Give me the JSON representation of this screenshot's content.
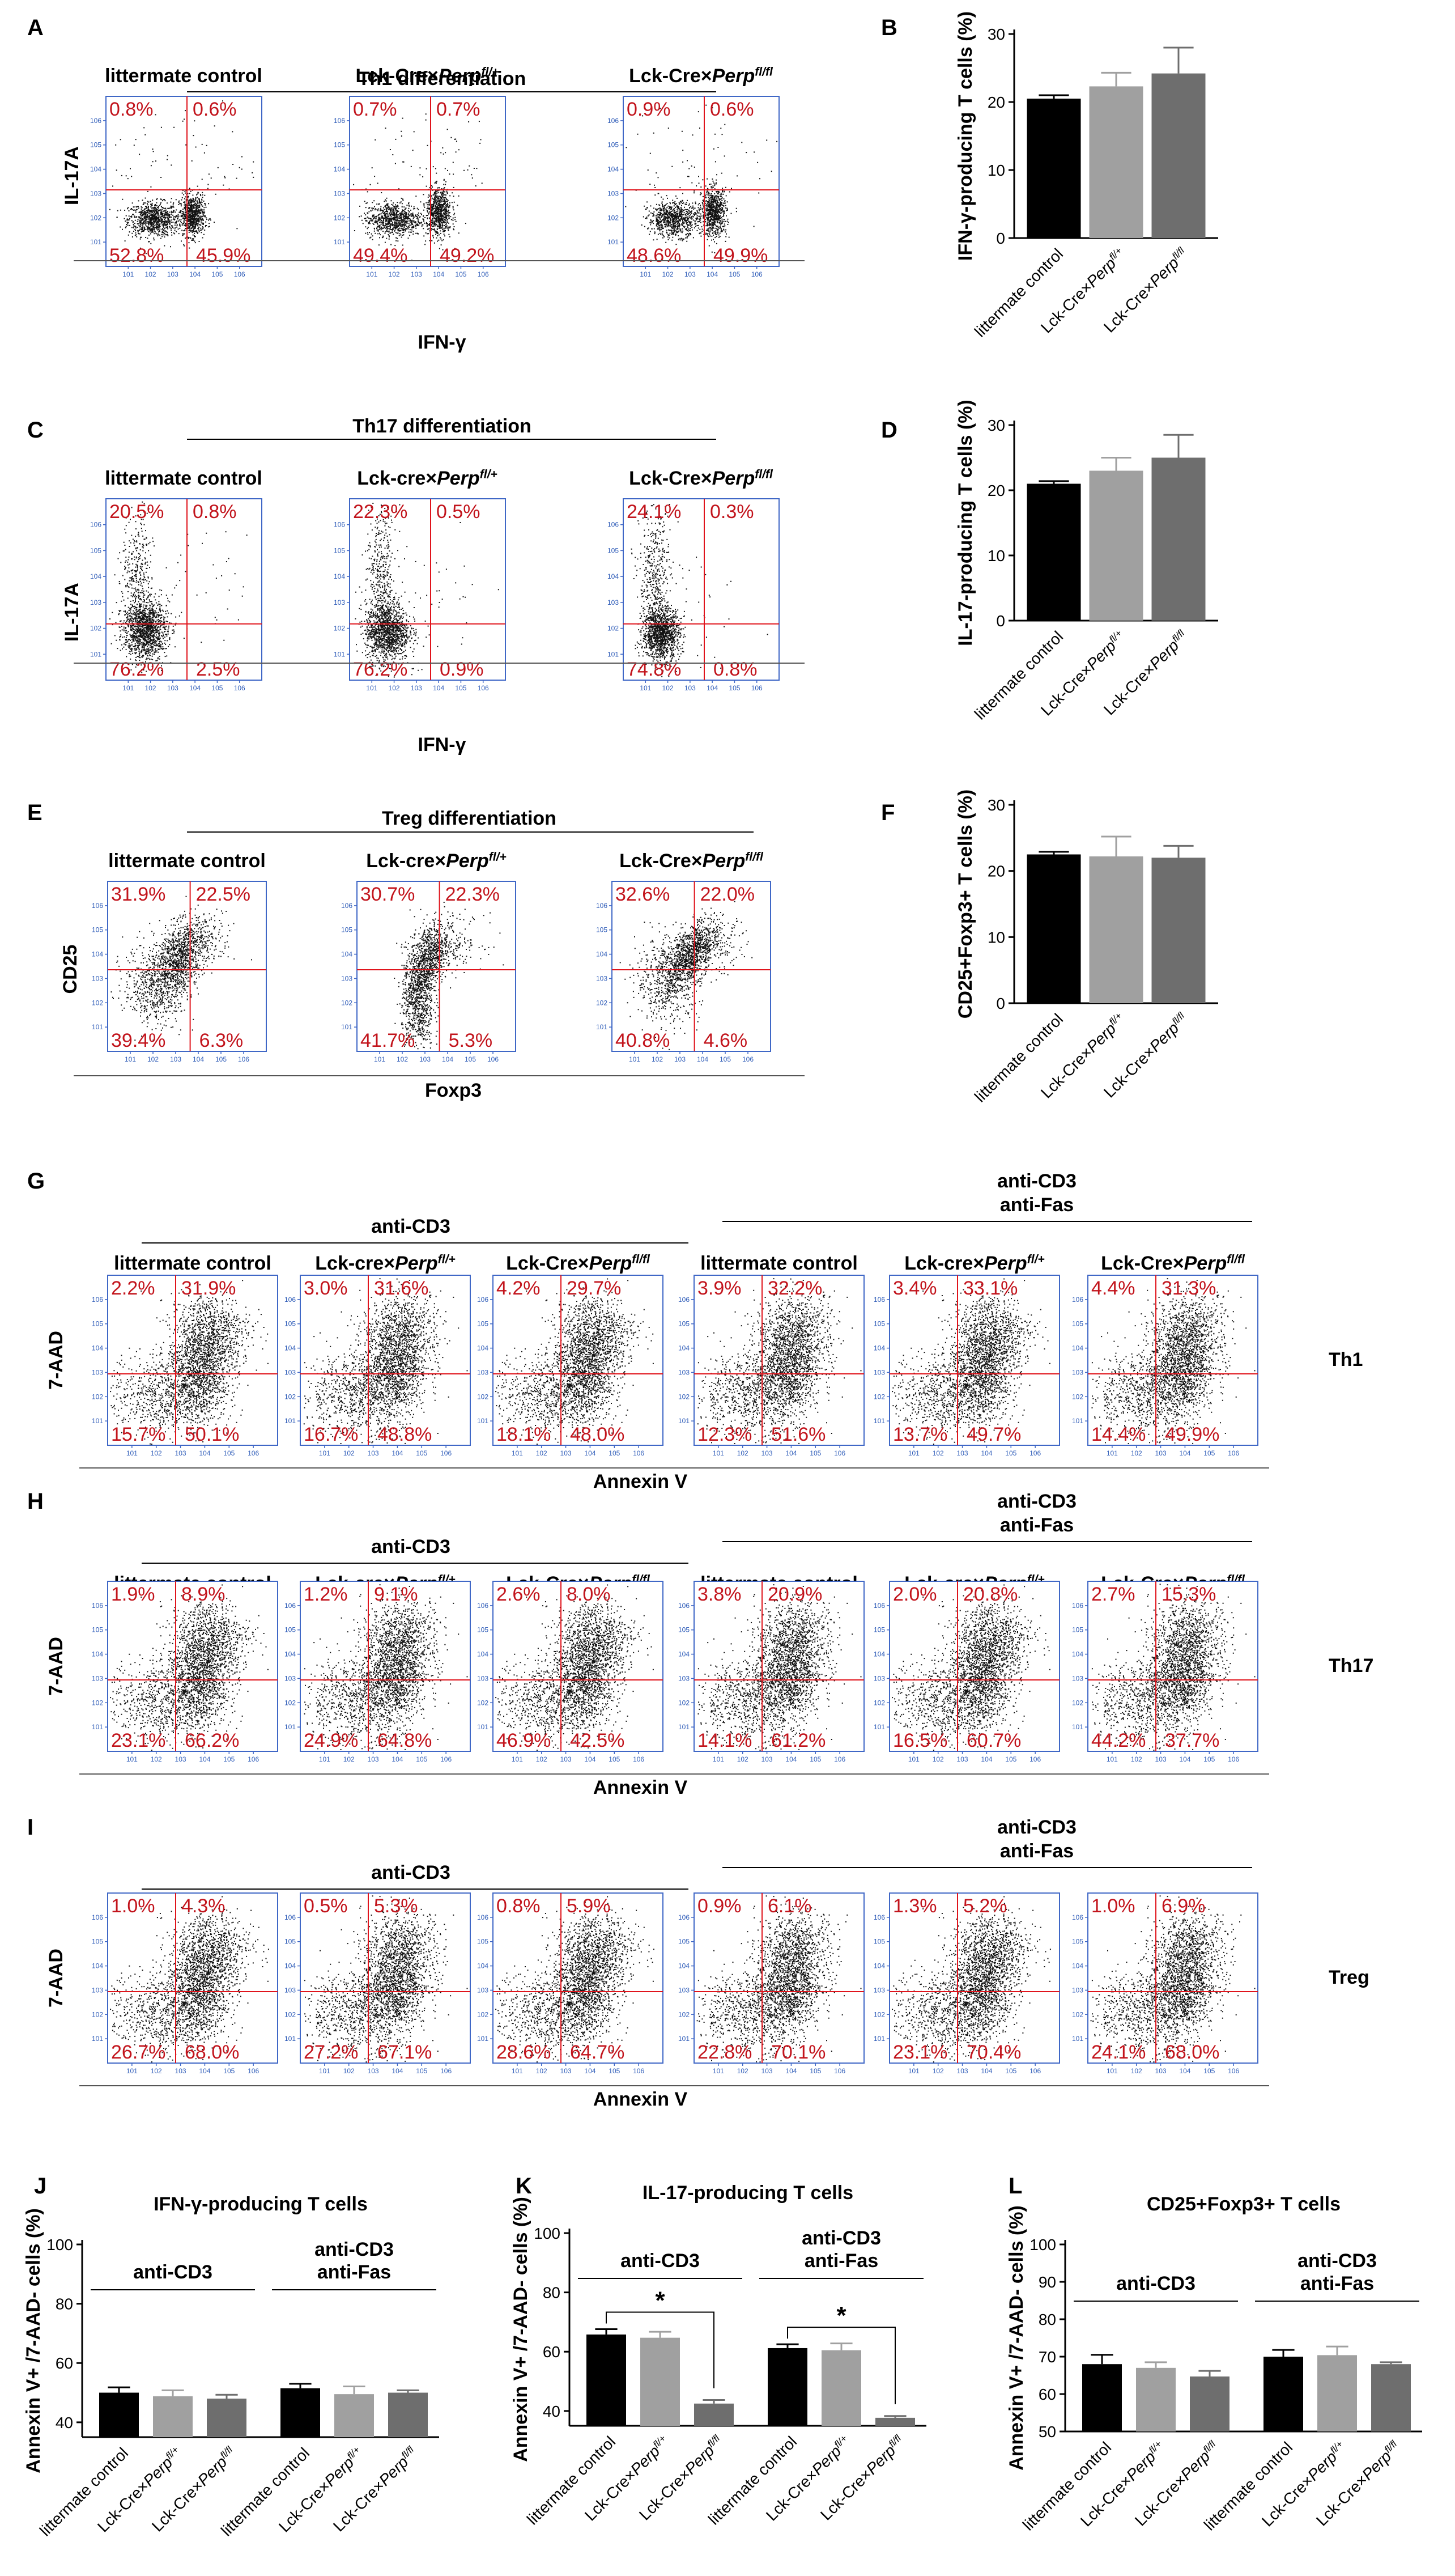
{
  "figure": {
    "panels": {
      "A": {
        "label": "A",
        "group_title": "Th1 differentiation",
        "x_axis": "IFN-γ",
        "y_axis": "IL-17A",
        "plots": [
          {
            "title": "littermate control",
            "quads": [
              "0.8%",
              "0.6%",
              "52.8%",
              "45.9%"
            ]
          },
          {
            "title_pre": "Lck-Cre×",
            "title_gene": "Perp",
            "title_sup": "fl/+",
            "quads": [
              "0.7%",
              "0.7%",
              "49.4%",
              "49.2%"
            ]
          },
          {
            "title_pre": "Lck-Cre×",
            "title_gene": "Perp",
            "title_sup": "fl/fl",
            "quads": [
              "0.9%",
              "0.6%",
              "48.6%",
              "49.9%"
            ]
          }
        ]
      },
      "C": {
        "label": "C",
        "group_title": "Th17 differentiation",
        "x_axis": "IFN-γ",
        "y_axis": "IL-17A",
        "plots": [
          {
            "title": "littermate control",
            "quads": [
              "20.5%",
              "0.8%",
              "76.2%",
              "2.5%"
            ]
          },
          {
            "title_pre": "Lck-cre×",
            "title_gene": "Perp",
            "title_sup": "fl/+",
            "quads": [
              "22.3%",
              "0.5%",
              "76.2%",
              "0.9%"
            ]
          },
          {
            "title_pre": "Lck-Cre×",
            "title_gene": "Perp",
            "title_sup": "fl/fl",
            "quads": [
              "24.1%",
              "0.3%",
              "74.8%",
              "0.8%"
            ]
          }
        ]
      },
      "E": {
        "label": "E",
        "group_title": "Treg differentiation",
        "x_axis": "Foxp3",
        "y_axis": "CD25",
        "plots": [
          {
            "title": "littermate control",
            "quads": [
              "31.9%",
              "22.5%",
              "39.4%",
              "6.3%"
            ]
          },
          {
            "title_pre": "Lck-cre×",
            "title_gene": "Perp",
            "title_sup": "fl/+",
            "quads": [
              "30.7%",
              "22.3%",
              "41.7%",
              "5.3%"
            ]
          },
          {
            "title_pre": "Lck-Cre×",
            "title_gene": "Perp",
            "title_sup": "fl/fl",
            "quads": [
              "32.6%",
              "22.0%",
              "40.8%",
              "4.6%"
            ]
          }
        ]
      },
      "G": {
        "label": "G",
        "side_label": "Th1",
        "group1": "anti-CD3",
        "group2_l1": "anti-CD3",
        "group2_l2": "anti-Fas",
        "x_axis": "Annexin V",
        "y_axis": "7-AAD",
        "quads": [
          [
            "2.2%",
            "31.9%",
            "15.7%",
            "50.1%"
          ],
          [
            "3.0%",
            "31.6%",
            "16.7%",
            "48.8%"
          ],
          [
            "4.2%",
            "29.7%",
            "18.1%",
            "48.0%"
          ],
          [
            "3.9%",
            "32.2%",
            "12.3%",
            "51.6%"
          ],
          [
            "3.4%",
            "33.1%",
            "13.7%",
            "49.7%"
          ],
          [
            "4.4%",
            "31.3%",
            "14.4%",
            "49.9%"
          ]
        ]
      },
      "H": {
        "label": "H",
        "side_label": "Th17",
        "group1": "anti-CD3",
        "group2_l1": "anti-CD3",
        "group2_l2": "anti-Fas",
        "x_axis": "Annexin V",
        "y_axis": "7-AAD",
        "quads": [
          [
            "1.9%",
            "8.9%",
            "23.1%",
            "66.2%"
          ],
          [
            "1.2%",
            "9.1%",
            "24.9%",
            "64.8%"
          ],
          [
            "2.6%",
            "8.0%",
            "46.9%",
            "42.5%"
          ],
          [
            "3.8%",
            "20.9%",
            "14.1%",
            "61.2%"
          ],
          [
            "2.0%",
            "20.8%",
            "16.5%",
            "60.7%"
          ],
          [
            "2.7%",
            "15.3%",
            "44.2%",
            "37.7%"
          ]
        ]
      },
      "I": {
        "label": "I",
        "side_label": "Treg",
        "group1": "anti-CD3",
        "group2_l1": "anti-CD3",
        "group2_l2": "anti-Fas",
        "x_axis": "Annexin V",
        "y_axis": "7-AAD",
        "quads": [
          [
            "1.0%",
            "4.3%",
            "26.7%",
            "68.0%"
          ],
          [
            "0.5%",
            "5.3%",
            "27.2%",
            "67.1%"
          ],
          [
            "0.8%",
            "5.9%",
            "28.6%",
            "64.7%"
          ],
          [
            "0.9%",
            "6.1%",
            "22.8%",
            "70.1%"
          ],
          [
            "1.3%",
            "5.2%",
            "23.1%",
            "70.4%"
          ],
          [
            "1.0%",
            "6.9%",
            "24.1%",
            "68.0%"
          ]
        ]
      }
    },
    "flow_titles": [
      {
        "pre": "littermate control"
      },
      {
        "pre": "Lck-cre×",
        "gene": "Perp",
        "sup": "fl/+"
      },
      {
        "pre": "Lck-Cre×",
        "gene": "Perp",
        "sup": "fl/fl"
      },
      {
        "pre": "littermate control"
      },
      {
        "pre": "Lck-cre×",
        "gene": "Perp",
        "sup": "fl/+"
      },
      {
        "pre": "Lck-Cre×",
        "gene": "Perp",
        "sup": "fl/fl"
      }
    ],
    "bar_category_labels": [
      {
        "pre": "littermate control"
      },
      {
        "pre": "Lck-Cre×",
        "gene": "Perp",
        "sup": "fl/+"
      },
      {
        "pre": "Lck-Cre×",
        "gene": "Perp",
        "sup": "fl/fl"
      }
    ],
    "colors": {
      "ctrl": "#000000",
      "het": "#a0a0a0",
      "ko": "#6e6e6e",
      "quad_text": "#c2141c",
      "gate": "#e0141c",
      "frame": "#3f67c6"
    }
  },
  "chart_data": [
    {
      "panel": "B",
      "type": "bar",
      "ylabel": "IFN-γ-producing  T cells (%)",
      "ylim": [
        0,
        30
      ],
      "yticks": [
        0,
        10,
        20,
        30
      ],
      "categories": [
        "littermate control",
        "Lck-Cre×Perp fl/+",
        "Lck-Cre×Perp fl/fl"
      ],
      "values": [
        20.5,
        22.3,
        24.2
      ],
      "errors": [
        0.5,
        2.0,
        3.8
      ]
    },
    {
      "panel": "D",
      "type": "bar",
      "ylabel": "IL-17-producing  T cells (%)",
      "ylim": [
        0,
        30
      ],
      "yticks": [
        0,
        10,
        20,
        30
      ],
      "categories": [
        "littermate control",
        "Lck-Cre×Perp fl/+",
        "Lck-Cre×Perp fl/fl"
      ],
      "values": [
        21.0,
        23.0,
        25.0
      ],
      "errors": [
        0.4,
        2.0,
        3.5
      ]
    },
    {
      "panel": "F",
      "type": "bar",
      "ylabel": "CD25+Foxp3+  T cells (%)",
      "ylim": [
        0,
        30
      ],
      "yticks": [
        0,
        10,
        20,
        30
      ],
      "categories": [
        "littermate control",
        "Lck-Cre×Perp fl/+",
        "Lck-Cre×Perp fl/fl"
      ],
      "values": [
        22.5,
        22.2,
        22.0
      ],
      "errors": [
        0.4,
        3.0,
        1.8
      ]
    },
    {
      "panel": "J",
      "type": "bar",
      "title": "IFN-γ-producing T cells",
      "ylabel": "Annexin V+ /7-AAD- cells (%)",
      "ylim": [
        35,
        100
      ],
      "yticks": [
        40,
        60,
        80,
        100
      ],
      "group_labels": [
        "anti-CD3",
        "anti-CD3\nanti-Fas"
      ],
      "categories": [
        "littermate control",
        "Lck-Cre×Perp fl/+",
        "Lck-Cre×Perp fl/fl",
        "littermate control",
        "Lck-Cre×Perp fl/+",
        "Lck-Cre×Perp fl/fl"
      ],
      "values": [
        50.0,
        48.8,
        48.0,
        51.5,
        49.5,
        50.0
      ],
      "errors": [
        1.8,
        2.0,
        1.3,
        1.5,
        2.6,
        0.8
      ]
    },
    {
      "panel": "K",
      "type": "bar",
      "title": "IL-17-producing T cells",
      "ylabel": "Annexin V+ /7-AAD- cells (%)",
      "ylim": [
        35,
        100
      ],
      "yticks": [
        40,
        60,
        80,
        100
      ],
      "group_labels": [
        "anti-CD3",
        "anti-CD3\nanti-Fas"
      ],
      "categories": [
        "littermate control",
        "Lck-Cre×Perp fl/+",
        "Lck-Cre×Perp fl/fl",
        "littermate control",
        "Lck-Cre×Perp fl/+",
        "Lck-Cre×Perp fl/fl"
      ],
      "values": [
        65.8,
        64.7,
        42.5,
        61.2,
        60.5,
        37.7
      ],
      "errors": [
        1.8,
        2.0,
        1.2,
        1.3,
        2.3,
        0.6
      ],
      "significance": [
        "*",
        "*"
      ]
    },
    {
      "panel": "L",
      "type": "bar",
      "title": "CD25+Foxp3+ T cells",
      "ylabel": "Annexin V+ /7-AAD- cells (%)",
      "ylim": [
        50,
        100
      ],
      "yticks": [
        50,
        60,
        70,
        80,
        90,
        100
      ],
      "group_labels": [
        "anti-CD3",
        "anti-CD3\nanti-Fas"
      ],
      "categories": [
        "littermate control",
        "Lck-Cre×Perp fl/+",
        "Lck-Cre×Perp fl/fl",
        "littermate control",
        "Lck-Cre×Perp fl/+",
        "Lck-Cre×Perp fl/fl"
      ],
      "values": [
        68.0,
        67.0,
        64.7,
        70.0,
        70.4,
        68.0
      ],
      "errors": [
        2.5,
        1.5,
        1.5,
        1.8,
        2.3,
        0.5
      ]
    }
  ]
}
